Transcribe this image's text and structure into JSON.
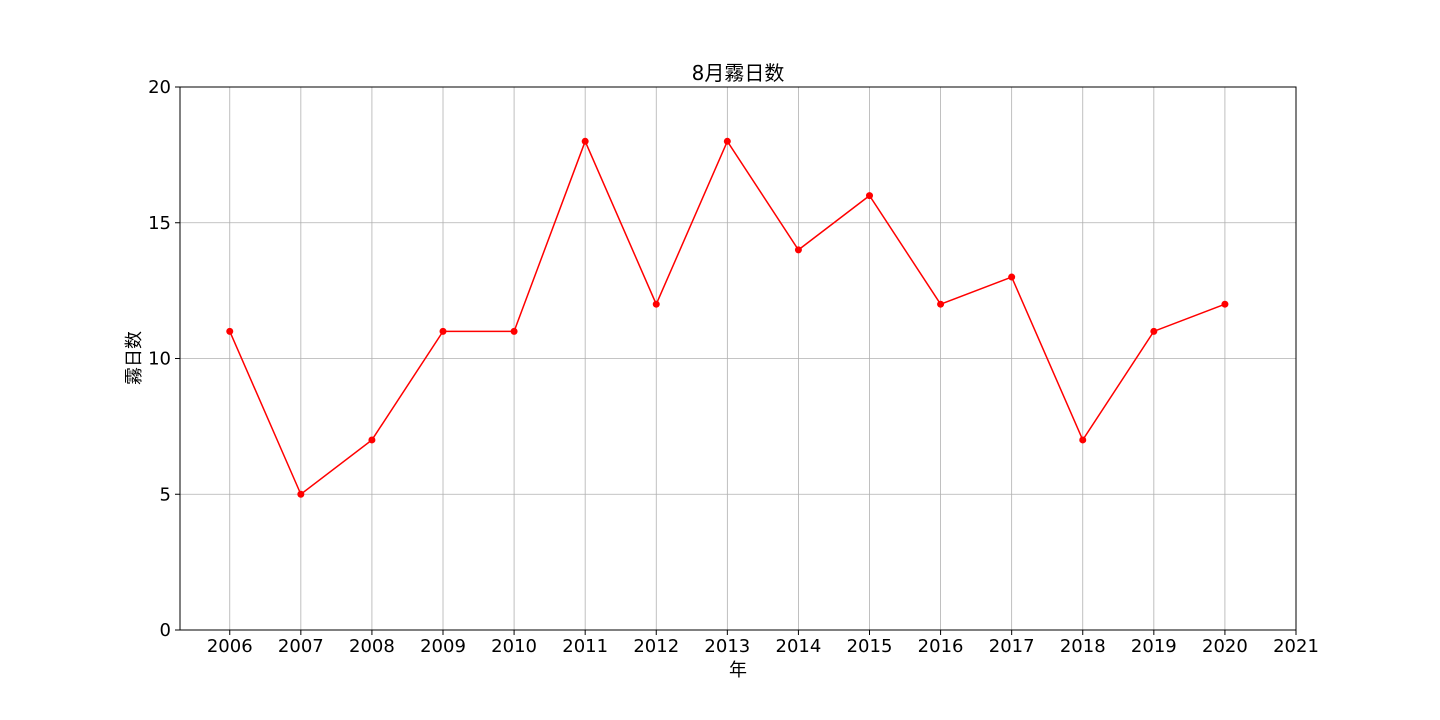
{
  "chart_data": {
    "type": "line",
    "title": "8月霧日数",
    "xlabel": "年",
    "ylabel": "霧日数",
    "x": [
      2006,
      2007,
      2008,
      2009,
      2010,
      2011,
      2012,
      2013,
      2014,
      2015,
      2016,
      2017,
      2018,
      2019,
      2020
    ],
    "series": [
      {
        "values": [
          11,
          5,
          7,
          11,
          11,
          18,
          12,
          18,
          14,
          16,
          12,
          13,
          7,
          11,
          12
        ],
        "color": "#ff0000",
        "marker": "circle"
      }
    ],
    "xlim": [
      2005.3,
      2021
    ],
    "ylim": [
      0,
      20
    ],
    "xticks": [
      2006,
      2007,
      2008,
      2009,
      2010,
      2011,
      2012,
      2013,
      2014,
      2015,
      2016,
      2017,
      2018,
      2019,
      2020,
      2021
    ],
    "yticks": [
      0,
      5,
      10,
      15,
      20
    ],
    "grid": true
  }
}
